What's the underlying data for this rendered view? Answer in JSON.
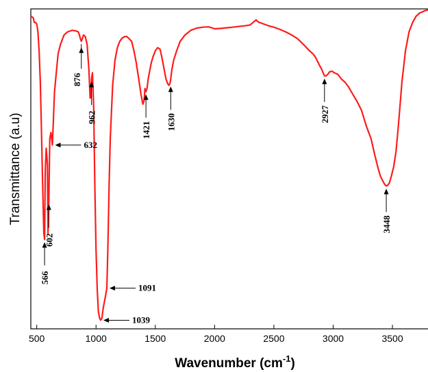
{
  "chart_data": {
    "type": "line",
    "xlabel": "Wavenumber (cm",
    "xlabel_sup": "-1",
    "xlabel_end": ")",
    "ylabel": "Transmittance (a.u)",
    "xlim": [
      450,
      3800
    ],
    "ylim": [
      0,
      1
    ],
    "x_ticks": [
      500,
      1000,
      1500,
      2000,
      2500,
      3000,
      3500
    ],
    "grid": false,
    "series": [
      {
        "color": "#ff1a1a",
        "x": [
          450,
          470,
          480,
          490,
          500,
          510,
          520,
          530,
          540,
          550,
          560,
          566,
          572,
          580,
          590,
          595,
          602,
          610,
          620,
          632,
          650,
          680,
          700,
          730,
          760,
          800,
          830,
          850,
          860,
          868,
          876,
          884,
          895,
          910,
          925,
          940,
          950,
          955,
          962,
          970,
          980,
          990,
          1000,
          1010,
          1020,
          1030,
          1039,
          1050,
          1060,
          1070,
          1080,
          1091,
          1100,
          1110,
          1120,
          1140,
          1160,
          1180,
          1200,
          1220,
          1240,
          1260,
          1280,
          1300,
          1320,
          1340,
          1360,
          1380,
          1395,
          1405,
          1413,
          1421,
          1430,
          1440,
          1450,
          1465,
          1480,
          1500,
          1520,
          1540,
          1555,
          1570,
          1590,
          1605,
          1615,
          1623,
          1630,
          1640,
          1655,
          1680,
          1710,
          1750,
          1800,
          1850,
          1900,
          1950,
          2000,
          2050,
          2100,
          2150,
          2200,
          2250,
          2300,
          2330,
          2350,
          2370,
          2400,
          2450,
          2500,
          2550,
          2600,
          2650,
          2700,
          2750,
          2800,
          2830,
          2850,
          2870,
          2890,
          2905,
          2915,
          2927,
          2940,
          2955,
          2970,
          2990,
          3010,
          3040,
          3070,
          3100,
          3130,
          3160,
          3200,
          3240,
          3280,
          3320,
          3350,
          3380,
          3400,
          3420,
          3435,
          3448,
          3460,
          3475,
          3490,
          3510,
          3530,
          3550,
          3580,
          3610,
          3640,
          3670,
          3700,
          3730,
          3760,
          3780,
          3800
        ],
        "y": [
          0.99,
          0.985,
          0.97,
          0.97,
          0.965,
          0.94,
          0.88,
          0.78,
          0.62,
          0.45,
          0.3,
          0.28,
          0.5,
          0.57,
          0.52,
          0.3,
          0.4,
          0.6,
          0.62,
          0.58,
          0.75,
          0.87,
          0.9,
          0.93,
          0.94,
          0.945,
          0.943,
          0.94,
          0.93,
          0.918,
          0.91,
          0.918,
          0.93,
          0.925,
          0.9,
          0.82,
          0.73,
          0.73,
          0.79,
          0.81,
          0.7,
          0.45,
          0.25,
          0.12,
          0.05,
          0.03,
          0.023,
          0.03,
          0.06,
          0.08,
          0.1,
          0.125,
          0.25,
          0.45,
          0.6,
          0.77,
          0.85,
          0.89,
          0.91,
          0.92,
          0.925,
          0.925,
          0.918,
          0.91,
          0.88,
          0.84,
          0.79,
          0.74,
          0.71,
          0.72,
          0.76,
          0.75,
          0.76,
          0.79,
          0.81,
          0.84,
          0.86,
          0.88,
          0.89,
          0.885,
          0.86,
          0.83,
          0.79,
          0.775,
          0.77,
          0.775,
          0.79,
          0.82,
          0.85,
          0.88,
          0.91,
          0.93,
          0.945,
          0.952,
          0.955,
          0.956,
          0.95,
          0.951,
          0.953,
          0.955,
          0.957,
          0.959,
          0.962,
          0.972,
          0.978,
          0.971,
          0.967,
          0.96,
          0.955,
          0.948,
          0.94,
          0.93,
          0.918,
          0.9,
          0.88,
          0.87,
          0.86,
          0.845,
          0.83,
          0.82,
          0.81,
          0.8,
          0.8,
          0.805,
          0.813,
          0.815,
          0.81,
          0.805,
          0.79,
          0.78,
          0.765,
          0.745,
          0.72,
          0.69,
          0.64,
          0.6,
          0.55,
          0.505,
          0.48,
          0.465,
          0.455,
          0.45,
          0.452,
          0.46,
          0.48,
          0.51,
          0.56,
          0.64,
          0.78,
          0.88,
          0.94,
          0.97,
          0.99,
          1.0,
          1.005,
          1.008,
          1.01
        ]
      }
    ],
    "annotations": [
      {
        "label": "566",
        "x": 566,
        "y": 0.28,
        "dir": "up"
      },
      {
        "label": "602",
        "x": 602,
        "y": 0.4,
        "dir": "up"
      },
      {
        "label": "632",
        "x": 632,
        "y": 0.58,
        "dir": "right"
      },
      {
        "label": "876",
        "x": 876,
        "y": 0.91,
        "dir": "down"
      },
      {
        "label": "962",
        "x": 962,
        "y": 0.79,
        "dir": "up"
      },
      {
        "label": "1039",
        "x": 1039,
        "y": 0.023,
        "dir": "right"
      },
      {
        "label": "1091",
        "x": 1091,
        "y": 0.125,
        "dir": "right"
      },
      {
        "label": "1421",
        "x": 1421,
        "y": 0.75,
        "dir": "up"
      },
      {
        "label": "1630",
        "x": 1630,
        "y": 0.775,
        "dir": "up"
      },
      {
        "label": "2927",
        "x": 2927,
        "y": 0.8,
        "dir": "up"
      },
      {
        "label": "3448",
        "x": 3448,
        "y": 0.45,
        "dir": "up"
      }
    ]
  }
}
